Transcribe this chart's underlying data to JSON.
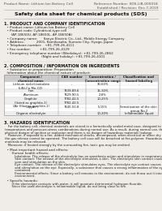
{
  "bg_color": "#f0ede8",
  "page_bg": "#ffffff",
  "header_left": "Product Name: Lithium Ion Battery Cell",
  "header_right_line1": "Reference Number: SDS-LIB-000018",
  "header_right_line2": "Established / Revision: Dec.7,2019",
  "title": "Safety data sheet for chemical products (SDS)",
  "section1_title": "1. PRODUCT AND COMPANY IDENTIFICATION",
  "section1_lines": [
    "  • Product name: Lithium Ion Battery Cell",
    "  • Product code: Cylindrical-type cell",
    "      (AP-18650U, AP-18650L, AP-18650A)",
    "  • Company name:      Sanyo Electric Co., Ltd., Mobile Energy Company",
    "  • Address:            2001, Kamikosaka, Sumoto City, Hyogo, Japan",
    "  • Telephone number:   +81-799-26-4111",
    "  • Fax number:         +81-799-26-4129",
    "  • Emergency telephone number (Weekdays): +81-799-26-2862",
    "                                    (Night and holiday): +81-799-26-4101"
  ],
  "section2_title": "2. COMPOSITION / INFORMATION ON INGREDIENTS",
  "section2_intro": "  • Substance or preparation: Preparation",
  "section2_sub": "  Information about the chemical nature of product:",
  "table_col_labels": [
    "Component /\nchemical name",
    "CAS number",
    "Concentration /\nConcentration range",
    "Classification and\nhazard labeling"
  ],
  "table_rows": [
    [
      "Lithium nickel-tantalate\n(LiNi-Co-Mn-O2)",
      "-",
      "30-60%",
      "-"
    ],
    [
      "Iron",
      "7439-89-6",
      "15-30%",
      "-"
    ],
    [
      "Aluminum",
      "7429-90-5",
      "2-8%",
      "-"
    ],
    [
      "Graphite\n(listed as graphite-1)\n(Air filter as graphite-1)",
      "7782-42-5\n7782-42-5",
      "10-25%",
      "-"
    ],
    [
      "Copper",
      "7440-50-8",
      "5-15%",
      "Sensitization of the skin\ngroup No.2"
    ],
    [
      "Organic electrolyte",
      "-",
      "10-20%",
      "Inflammable liquid"
    ]
  ],
  "section3_title": "3. HAZARDS IDENTIFICATION",
  "section3_para1": "   For the battery cell, chemical materials are stored in a hermetically sealed metal case, designed to withstand",
  "section3_para2": "temperatures and pressure-stress combinations during normal use. As a result, during normal use, there is no",
  "section3_para3": "physical danger of ignition or explosion and there is no danger of hazardous materials leakage.",
  "section3_para4": "   However, if exposed to a fire, added mechanical shocks, decomposed, when electrical or other dry cells are",
  "section3_para5": "the gas release cannot be operated. The battery cell case will be breached at fire-polymer. Hazardous",
  "section3_para6": "materials may be released.",
  "section3_para7": "   Moreover, if heated strongly by the surrounding fire, toxic gas may be emitted.",
  "s3_bullet1": "  • Most important hazard and effects:",
  "s3_human": "      Human health effects:",
  "s3_human_lines": [
    "         Inhalation: The release of the electrolyte has an anesthesia action and stimulates in respiratory tract.",
    "         Skin contact: The release of the electrolyte stimulates a skin. The electrolyte skin contact causes a",
    "         sore and stimulation on the skin.",
    "         Eye contact: The release of the electrolyte stimulates eyes. The electrolyte eye contact causes a sore",
    "         and stimulation on the eye. Especially, a substance that causes a strong inflammation of the eyes is",
    "         contained.",
    "         Environmental effects: Since a battery cell remains in the environment, do not throw out it into the",
    "         environment."
  ],
  "s3_specific": "  • Specific hazards:",
  "s3_specific_lines": [
    "      If the electrolyte contacts with water, it will generate detrimental hydrogen fluoride.",
    "      Since the used electrolyte is inflammable liquid, do not bring close to fire."
  ]
}
